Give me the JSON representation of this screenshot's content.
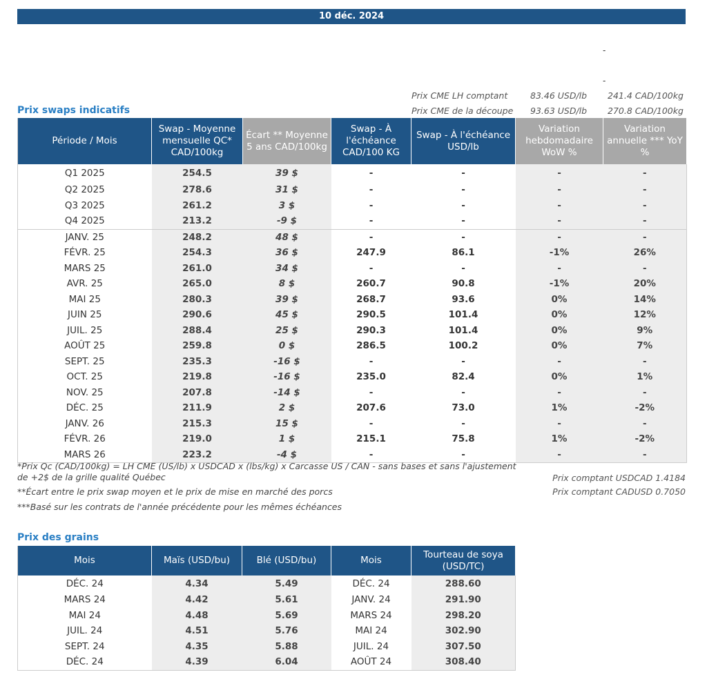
{
  "date": "10 déc. 2024",
  "dashes": [
    "-",
    "-"
  ],
  "cme": [
    {
      "label": "Prix CME LH comptant",
      "usd": "83.46 USD/lb",
      "cad": "241.4 CAD/100kg"
    },
    {
      "label": "Prix CME de la découpe",
      "usd": "93.63 USD/lb",
      "cad": "270.8 CAD/100kg"
    }
  ],
  "swaps": {
    "title": "Prix swaps indicatifs",
    "headers": [
      "Période / Mois",
      "Swap - Moyenne mensuelle QC* CAD/100kg",
      "Écart ** Moyenne 5 ans CAD/100kg",
      "Swap - À l'échéance CAD/100 KG",
      "Swap - À l'échéance USD/lb",
      "Variation hebdomadaire WoW %",
      "Variation annuelle *** YoY %"
    ],
    "rows": [
      {
        "p": "Q1 2025",
        "m": "254.5",
        "e": "39 $",
        "es": "pos",
        "c": "-",
        "u": "-",
        "w": "-",
        "ws": "pos",
        "y": "-",
        "ys": "pos"
      },
      {
        "p": "Q2 2025",
        "m": "278.6",
        "e": "31 $",
        "es": "pos",
        "c": "-",
        "u": "-",
        "w": "-",
        "ws": "pos",
        "y": "-",
        "ys": "pos"
      },
      {
        "p": "Q3 2025",
        "m": "261.2",
        "e": "3 $",
        "es": "pos",
        "c": "-",
        "u": "-",
        "w": "-",
        "ws": "pos",
        "y": "-",
        "ys": "pos"
      },
      {
        "p": "Q4 2025",
        "m": "213.2",
        "e": "-9 $",
        "es": "neg",
        "c": "-",
        "u": "-",
        "w": "-",
        "ws": "pos",
        "y": "-",
        "ys": "pos"
      },
      {
        "p": "JANV. 25",
        "m": "248.2",
        "e": "48 $",
        "es": "pos",
        "c": "-",
        "u": "-",
        "w": "-",
        "ws": "pos",
        "y": "-",
        "ys": "pos"
      },
      {
        "p": "FÉVR. 25",
        "m": "254.3",
        "e": "36 $",
        "es": "pos",
        "c": "247.9",
        "u": "86.1",
        "w": "-1%",
        "ws": "neg",
        "y": "26%",
        "ys": "pos"
      },
      {
        "p": "MARS 25",
        "m": "261.0",
        "e": "34 $",
        "es": "pos",
        "c": "-",
        "u": "-",
        "w": "-",
        "ws": "pos",
        "y": "-",
        "ys": "pos"
      },
      {
        "p": "AVR. 25",
        "m": "265.0",
        "e": "8 $",
        "es": "pos",
        "c": "260.7",
        "u": "90.8",
        "w": "-1%",
        "ws": "neg",
        "y": "20%",
        "ys": "pos"
      },
      {
        "p": "MAI 25",
        "m": "280.3",
        "e": "39 $",
        "es": "pos",
        "c": "268.7",
        "u": "93.6",
        "w": "0%",
        "ws": "neg",
        "y": "14%",
        "ys": "pos"
      },
      {
        "p": "JUIN 25",
        "m": "290.6",
        "e": "45 $",
        "es": "pos",
        "c": "290.5",
        "u": "101.4",
        "w": "0%",
        "ws": "neg",
        "y": "12%",
        "ys": "pos"
      },
      {
        "p": "JUIL. 25",
        "m": "288.4",
        "e": "25 $",
        "es": "pos",
        "c": "290.3",
        "u": "101.4",
        "w": "0%",
        "ws": "neg",
        "y": "9%",
        "ys": "pos"
      },
      {
        "p": "AOÛT 25",
        "m": "259.8",
        "e": "0 $",
        "es": "neg",
        "c": "286.5",
        "u": "100.2",
        "w": "0%",
        "ws": "neg",
        "y": "7%",
        "ys": "pos"
      },
      {
        "p": "SEPT. 25",
        "m": "235.3",
        "e": "-16 $",
        "es": "neg",
        "c": "-",
        "u": "-",
        "w": "-",
        "ws": "pos",
        "y": "-",
        "ys": "pos"
      },
      {
        "p": "OCT. 25",
        "m": "219.8",
        "e": "-16 $",
        "es": "neg",
        "c": "235.0",
        "u": "82.4",
        "w": "0%",
        "ws": "pos",
        "y": "1%",
        "ys": "pos"
      },
      {
        "p": "NOV. 25",
        "m": "207.8",
        "e": "-14 $",
        "es": "neg",
        "c": "-",
        "u": "-",
        "w": "-",
        "ws": "pos",
        "y": "-",
        "ys": "pos"
      },
      {
        "p": "DÉC. 25",
        "m": "211.9",
        "e": "2 $",
        "es": "pos",
        "c": "207.6",
        "u": "73.0",
        "w": "1%",
        "ws": "pos",
        "y": "-2%",
        "ys": "neg"
      },
      {
        "p": "JANV. 26",
        "m": "215.3",
        "e": "15 $",
        "es": "pos",
        "c": "-",
        "u": "-",
        "w": "-",
        "ws": "pos",
        "y": "-",
        "ys": "pos"
      },
      {
        "p": "FÉVR. 26",
        "m": "219.0",
        "e": "1 $",
        "es": "pos",
        "c": "215.1",
        "u": "75.8",
        "w": "1%",
        "ws": "pos",
        "y": "-2%",
        "ys": "neg"
      },
      {
        "p": "MARS 26",
        "m": "223.2",
        "e": "-4 $",
        "es": "neg",
        "c": "-",
        "u": "-",
        "w": "-",
        "ws": "pos",
        "y": "-",
        "ys": "pos"
      }
    ]
  },
  "notes": {
    "n1": "*Prix Qc (CAD/100kg) = LH CME (US/lb) x USDCAD x (lbs/kg) x Carcasse US / CAN - sans bases et sans l'ajustement de +2$ de la grille qualité Québec",
    "n2": "**Écart entre le prix swap moyen et le prix de mise en marché des porcs",
    "n3": "***Basé sur les contrats de l'année précédente pour les mêmes échéances",
    "usdcad": "Prix comptant USDCAD 1.4184",
    "cadusd": "Prix comptant CADUSD 0.7050"
  },
  "grains": {
    "title": "Prix des grains",
    "headers": [
      "Mois",
      "Maïs (USD/bu)",
      "Blé (USD/bu)",
      "Mois",
      "Tourteau de soya (USD/TC)"
    ],
    "rows": [
      [
        "DÉC. 24",
        "4.34",
        "5.49",
        "DÉC. 24",
        "288.60"
      ],
      [
        "MARS 24",
        "4.42",
        "5.61",
        "JANV. 24",
        "291.90"
      ],
      [
        "MAI 24",
        "4.48",
        "5.69",
        "MARS 24",
        "298.20"
      ],
      [
        "JUIL. 24",
        "4.51",
        "5.76",
        "MAI 24",
        "302.90"
      ],
      [
        "SEPT. 24",
        "4.35",
        "5.88",
        "JUIL. 24",
        "307.50"
      ],
      [
        "DÉC. 24",
        "4.39",
        "6.04",
        "AOÛT 24",
        "308.40"
      ]
    ]
  }
}
